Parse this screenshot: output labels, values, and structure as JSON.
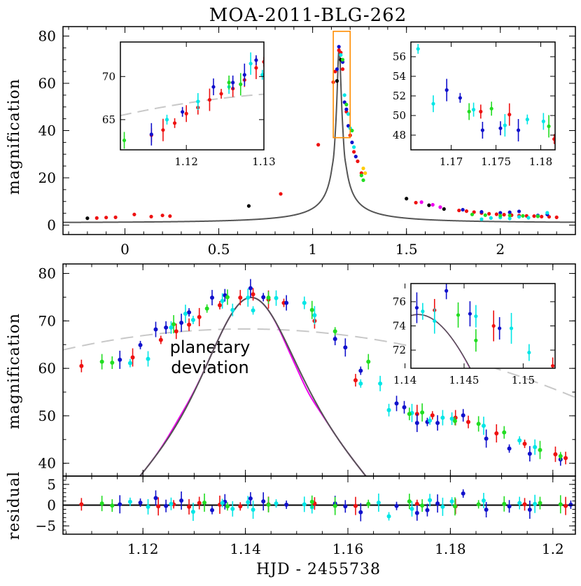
{
  "title": "MOA-2011-BLG-262",
  "annotation": [
    "planetary",
    "deviation"
  ],
  "colors": {
    "model_planet": "#555555",
    "model_alt": "#ee00ee",
    "model_point_lens": "#c8c8c8",
    "highlight_box": "#ff8c00",
    "datasets": [
      "#ee1111",
      "#1111cc",
      "#00e6e6",
      "#22dd22",
      "#000000",
      "#ffcc00"
    ]
  },
  "chart_data": [
    {
      "id": "top",
      "type": "scatter",
      "ylabel": "magnification",
      "xlim": [
        -0.33,
        2.4
      ],
      "ylim": [
        -4,
        84
      ],
      "xticks": [
        0,
        0.5,
        1,
        1.5,
        2
      ],
      "xtick_labels": [
        "0",
        "0.5",
        "1",
        "1.5",
        "2"
      ],
      "yticks": [
        0,
        20,
        40,
        60,
        80
      ],
      "ytick_labels": [
        "0",
        "20",
        "40",
        "60",
        "80"
      ],
      "highlight_box": {
        "x": [
          1.11,
          1.2
        ],
        "y": [
          37,
          82
        ]
      },
      "series": [
        {
          "color": "#000000",
          "x": [
            -0.2,
            0.66,
            1.13,
            1.15,
            1.5,
            1.62,
            1.7
          ],
          "y": [
            2.9,
            8.1,
            61,
            70,
            11.2,
            8.4,
            6.8
          ]
        },
        {
          "color": "#ee1111",
          "x": [
            -0.15,
            -0.1,
            -0.05,
            0.05,
            0.14,
            0.2,
            0.24,
            0.83,
            1.03,
            1.11,
            1.12,
            1.14,
            1.15,
            1.16,
            1.18,
            1.2,
            1.22,
            1.24,
            1.26,
            1.55,
            1.78,
            1.82,
            1.86,
            1.9,
            1.94,
            1.98,
            2.02,
            2.06,
            2.1,
            2.14,
            2.18,
            2.22,
            2.26,
            2.3
          ],
          "y": [
            3,
            3.2,
            3.3,
            4.5,
            3.6,
            4.1,
            3.8,
            13.2,
            34,
            60.5,
            65,
            74,
            73,
            66,
            48,
            38,
            31,
            27,
            22,
            9.5,
            6.2,
            5.9,
            5.5,
            5.1,
            4.8,
            4.6,
            4.4,
            4.2,
            4,
            3.9,
            3.8,
            3.6,
            3.5,
            3.3
          ]
        },
        {
          "color": "#1111cc",
          "x": [
            1.13,
            1.14,
            1.16,
            1.17,
            1.18,
            1.19,
            1.21,
            1.23,
            1.8,
            1.9,
            2,
            2.05,
            2.1,
            2.2,
            2.25
          ],
          "y": [
            66,
            75.5,
            69,
            52,
            49,
            42,
            35,
            29,
            6.5,
            5.6,
            5.2,
            5.4,
            5.8,
            4.1,
            4.5
          ]
        },
        {
          "color": "#00e6e6",
          "x": [
            1.15,
            1.17,
            1.19,
            1.2,
            1.22,
            1.9,
            1.95,
            2,
            2.05,
            2.1,
            2.15,
            2.2,
            2.25
          ],
          "y": [
            72,
            55,
            47,
            41,
            33,
            2.5,
            3,
            3.2,
            2.8,
            3.5,
            3.1,
            3.8,
            5.2
          ]
        },
        {
          "color": "#22dd22",
          "x": [
            1.16,
            1.18,
            1.21,
            1.26,
            1.27,
            1.85,
            1.92,
            2,
            2.05,
            2.12,
            2.2
          ],
          "y": [
            70,
            51,
            40,
            21,
            19,
            4.5,
            4.2,
            4,
            4.1,
            3.9,
            3.7
          ]
        },
        {
          "color": "#ffcc00",
          "x": [
            1.27,
            1.28
          ],
          "y": [
            24,
            22
          ]
        },
        {
          "color": "#ee00ee",
          "x": [
            1.58,
            1.64,
            1.68
          ],
          "y": [
            9.7,
            8.6,
            7.6
          ]
        }
      ],
      "insets": [
        {
          "id": "top-left-inset",
          "xlim": [
            1.1115,
            1.13
          ],
          "ylim": [
            61.5,
            74
          ],
          "xticks": [
            1.12,
            1.13
          ],
          "xtick_labels": [
            "1.12",
            "1.13"
          ],
          "yticks": [
            65,
            70
          ],
          "ytick_labels": [
            "65",
            "70"
          ],
          "series": [
            {
              "color": "#ee1111",
              "x": [
                1.1155,
                1.117,
                1.1185,
                1.12,
                1.1215,
                1.123,
                1.1245,
                1.126,
                1.1275,
                1.129,
                1.13
              ],
              "y": [
                63.2,
                63.8,
                64.6,
                65.7,
                66.4,
                67.3,
                68,
                68.6,
                69.6,
                71,
                71.7
              ]
            },
            {
              "color": "#1111cc",
              "x": [
                1.1155,
                1.1195,
                1.1235,
                1.126,
                1.1275,
                1.129
              ],
              "y": [
                63.3,
                65.9,
                68.8,
                69.3,
                70.2,
                71.9
              ]
            },
            {
              "color": "#00e6e6",
              "x": [
                1.1175,
                1.1215,
                1.1255,
                1.1283,
                1.1298
              ],
              "y": [
                65,
                67.1,
                68.8,
                71.5,
                70.2
              ]
            },
            {
              "color": "#22dd22",
              "x": [
                1.112,
                1.1255,
                1.127
              ],
              "y": [
                62.6,
                69.3,
                69.1
              ]
            }
          ]
        },
        {
          "id": "top-right-inset",
          "xlim": [
            1.1655,
            1.1816
          ],
          "ylim": [
            46.5,
            57.5
          ],
          "xticks": [
            1.17,
            1.175,
            1.18
          ],
          "xtick_labels": [
            "1.17",
            "1.175",
            "1.18"
          ],
          "yticks": [
            48,
            50,
            52,
            54,
            56
          ],
          "ytick_labels": [
            "48",
            "50",
            "52",
            "54",
            "56"
          ],
          "series": [
            {
              "color": "#ee1111",
              "x": [
                1.1733,
                1.1765,
                1.1815
              ],
              "y": [
                50.4,
                50.1,
                47.6
              ]
            },
            {
              "color": "#1111cc",
              "x": [
                1.1695,
                1.171,
                1.1735,
                1.1755,
                1.1775
              ],
              "y": [
                52.6,
                51.8,
                48.5,
                48.7,
                48.5
              ]
            },
            {
              "color": "#00e6e6",
              "x": [
                1.1663,
                1.168,
                1.1725,
                1.176,
                1.1785,
                1.1803
              ],
              "y": [
                56.8,
                51.2,
                50.6,
                49,
                49.6,
                49.4
              ]
            },
            {
              "color": "#22dd22",
              "x": [
                1.172,
                1.1745,
                1.1809
              ],
              "y": [
                50.4,
                50.7,
                48.9
              ]
            }
          ]
        }
      ]
    },
    {
      "id": "bottom-main",
      "type": "scatter",
      "ylabel": "magnification",
      "xlim": [
        1.1044,
        1.2044
      ],
      "ylim": [
        37.3,
        82
      ],
      "yticks": [
        40,
        50,
        60,
        70,
        80
      ],
      "ytick_labels": [
        "40",
        "50",
        "60",
        "70",
        "80"
      ],
      "series": [
        {
          "color": "#ee1111",
          "x": [
            1.108,
            1.118,
            1.1235,
            1.1265,
            1.129,
            1.131,
            1.135,
            1.139,
            1.1415,
            1.1445,
            1.1475,
            1.1535,
            1.1615,
            1.1735,
            1.1765,
            1.181,
            1.1835,
            1.189,
            1.1945,
            1.2005,
            1.2025
          ],
          "y": [
            60.5,
            62.3,
            66,
            67.8,
            69.2,
            70.8,
            73.3,
            74.9,
            75.6,
            74.5,
            73.8,
            70,
            57.5,
            50.4,
            50.1,
            49.6,
            48.7,
            46.3,
            44.1,
            41.9,
            41.1
          ]
        },
        {
          "color": "#1111cc",
          "x": [
            1.1155,
            1.1195,
            1.1225,
            1.1245,
            1.1275,
            1.129,
            1.1335,
            1.136,
            1.141,
            1.1435,
            1.148,
            1.1575,
            1.1595,
            1.1625,
            1.1695,
            1.171,
            1.1735,
            1.1755,
            1.1775,
            1.1825,
            1.187,
            1.1915,
            1.1955,
            1.2015
          ],
          "y": [
            61.8,
            64.9,
            68.2,
            68.6,
            69.6,
            71.8,
            74.9,
            75.4,
            76.9,
            75,
            73.8,
            66.2,
            64.4,
            59.5,
            52.6,
            51.8,
            48.5,
            48.7,
            48.5,
            50.1,
            45.2,
            43.1,
            42,
            40.8
          ]
        },
        {
          "color": "#00e6e6",
          "x": [
            1.1175,
            1.121,
            1.1255,
            1.1283,
            1.1298,
            1.1355,
            1.1375,
            1.1405,
            1.1415,
            1.146,
            1.1515,
            1.1535,
            1.1625,
            1.1663,
            1.168,
            1.1725,
            1.176,
            1.1785,
            1.1803,
            1.1865,
            1.1935,
            1.1965
          ],
          "y": [
            61.1,
            62,
            68.6,
            71.5,
            70.2,
            74.2,
            72.3,
            74.9,
            72.2,
            74.8,
            73.8,
            71.2,
            56.8,
            56.8,
            51.2,
            50.6,
            49,
            49.6,
            49.4,
            47.9,
            44.8,
            43.4
          ]
        },
        {
          "color": "#22dd22",
          "x": [
            1.112,
            1.114,
            1.126,
            1.1325,
            1.1365,
            1.1445,
            1.153,
            1.1575,
            1.164,
            1.172,
            1.1745,
            1.1809,
            1.1855,
            1.1905,
            1.1975,
            1.2015
          ],
          "y": [
            61.4,
            61.2,
            69.3,
            72.6,
            75,
            74.9,
            72.3,
            67.8,
            61.4,
            50.4,
            50.7,
            48.9,
            48.3,
            46.5,
            42.8,
            41.5
          ]
        }
      ],
      "inset": {
        "id": "bottom-inset",
        "xlim": [
          1.1405,
          1.1527
        ],
        "ylim": [
          70.5,
          77.5
        ],
        "xticks": [
          1.14,
          1.145,
          1.15
        ],
        "xtick_labels": [
          "1.14",
          "1.145",
          "1.15"
        ],
        "yticks": [
          72,
          74,
          76
        ],
        "ytick_labels": [
          "72",
          "74",
          "76"
        ],
        "series": [
          {
            "color": "#ee1111",
            "x": [
              1.1425,
              1.1475,
              1.1525
            ],
            "y": [
              75.3,
              74,
              70.7
            ]
          },
          {
            "color": "#1111cc",
            "x": [
              1.141,
              1.1435,
              1.1455,
              1.148
            ],
            "y": [
              75.5,
              76.9,
              75,
              73.8
            ]
          },
          {
            "color": "#00e6e6",
            "x": [
              1.1415,
              1.1425,
              1.146,
              1.149,
              1.1505
            ],
            "y": [
              75.2,
              74.4,
              74.8,
              73.8,
              71.8
            ]
          },
          {
            "color": "#22dd22",
            "x": [
              1.1445,
              1.146
            ],
            "y": [
              74.9,
              72.8
            ]
          }
        ]
      }
    },
    {
      "id": "bottom-residual",
      "type": "scatter",
      "ylabel": "residual",
      "xlabel": "HJD - 2455738",
      "xlim": [
        1.1044,
        1.2044
      ],
      "ylim": [
        -7,
        7
      ],
      "xticks": [
        1.12,
        1.14,
        1.16,
        1.18,
        1.2
      ],
      "xtick_labels": [
        "1.12",
        "1.14",
        "1.16",
        "1.18",
        "1.2"
      ],
      "yticks": [
        -5,
        0,
        5
      ],
      "ytick_labels": [
        "−5",
        "0",
        "5"
      ],
      "series": [
        {
          "color": "#ee1111",
          "x": [
            1.108,
            1.123,
            1.126,
            1.129,
            1.131,
            1.135,
            1.139,
            1.1445,
            1.1535,
            1.1615,
            1.1735,
            1.181,
            1.1945,
            1.2025
          ],
          "y": [
            0.2,
            -0.3,
            0.2,
            -0.4,
            0.5,
            0.1,
            -0.3,
            0.2,
            0.4,
            -0.2,
            0.3,
            -0.3,
            0.2,
            -0.2
          ]
        },
        {
          "color": "#1111cc",
          "x": [
            1.1155,
            1.1195,
            1.1225,
            1.1245,
            1.1275,
            1.1335,
            1.136,
            1.141,
            1.1435,
            1.148,
            1.1575,
            1.1595,
            1.1625,
            1.1695,
            1.1735,
            1.1755,
            1.1775,
            1.1825,
            1.187,
            1.1915,
            1.1955,
            1.2035
          ],
          "y": [
            0.2,
            0.6,
            1.7,
            -0.2,
            1.1,
            -1.2,
            0.8,
            1.6,
            0.9,
            0.1,
            0.4,
            -0.3,
            -1.7,
            -0.2,
            -1.9,
            -1.2,
            0.4,
            2.8,
            -1.1,
            -0.3,
            -1.1,
            0.1
          ]
        },
        {
          "color": "#00e6e6",
          "x": [
            1.1175,
            1.121,
            1.1255,
            1.1298,
            1.1355,
            1.1375,
            1.1405,
            1.1415,
            1.146,
            1.1515,
            1.153,
            1.166,
            1.168,
            1.1725,
            1.176,
            1.1785,
            1.1803,
            1.1865,
            1.1935,
            1.1965
          ],
          "y": [
            0.8,
            -0.4,
            0.3,
            -1.6,
            0.5,
            -0.9,
            0.7,
            -1.1,
            0.4,
            0.2,
            -0.5,
            0.6,
            -2.7,
            -0.9,
            1.2,
            -0.4,
            0.9,
            1.1,
            0.5,
            0.3
          ]
        },
        {
          "color": "#22dd22",
          "x": [
            1.112,
            1.114,
            1.132,
            1.1365,
            1.1445,
            1.153,
            1.1575,
            1.164,
            1.172,
            1.1745,
            1.1809,
            1.1855,
            1.1905,
            1.1975,
            1.2015
          ],
          "y": [
            0.4,
            -0.1,
            0.6,
            -0.3,
            0.1,
            0.8,
            -0.2,
            0.3,
            0.9,
            -0.1,
            -0.3,
            0.2,
            0.3,
            0.5,
            0.2
          ]
        }
      ]
    }
  ]
}
